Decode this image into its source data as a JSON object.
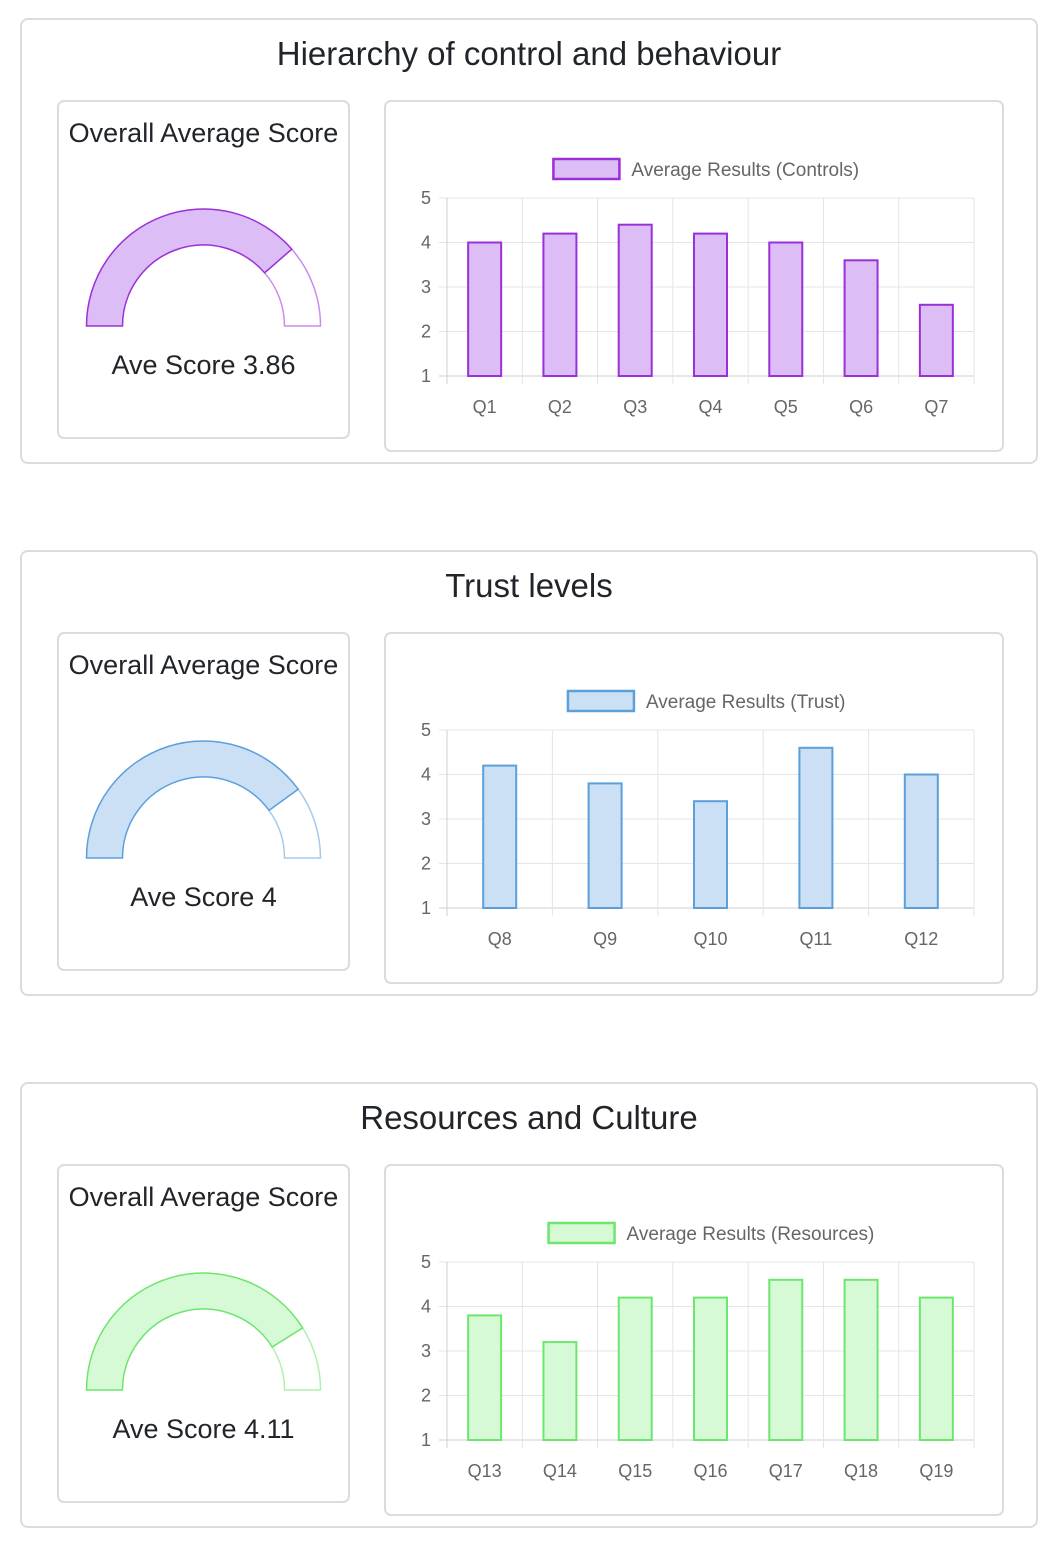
{
  "sections": [
    {
      "title": "Hierarchy of control and behaviour",
      "gauge_label": "Overall Average Score",
      "score_text": "Ave Score 3.86",
      "score_value": 3.86,
      "score_max": 5,
      "colors": {
        "fill": "#dcbdf5",
        "stroke": "#9b30d9"
      },
      "chart_data": {
        "type": "bar",
        "legend": "Average Results (Controls)",
        "legend_position": "top",
        "categories": [
          "Q1",
          "Q2",
          "Q3",
          "Q4",
          "Q5",
          "Q6",
          "Q7"
        ],
        "values": [
          4.0,
          4.2,
          4.4,
          4.2,
          4.0,
          3.6,
          2.6
        ],
        "ylim": [
          1,
          5
        ],
        "yticks": [
          "1",
          "2",
          "3",
          "4",
          "5"
        ],
        "grid": true
      }
    },
    {
      "title": "Trust levels",
      "gauge_label": "Overall Average Score",
      "score_text": "Ave Score 4",
      "score_value": 4,
      "score_max": 5,
      "colors": {
        "fill": "#cce0f5",
        "stroke": "#5b9fdc"
      },
      "chart_data": {
        "type": "bar",
        "legend": "Average Results (Trust)",
        "legend_position": "top",
        "categories": [
          "Q8",
          "Q9",
          "Q10",
          "Q11",
          "Q12"
        ],
        "values": [
          4.2,
          3.8,
          3.4,
          4.6,
          4.0
        ],
        "ylim": [
          1,
          5
        ],
        "yticks": [
          "1",
          "2",
          "3",
          "4",
          "5"
        ],
        "grid": true
      }
    },
    {
      "title": "Resources and Culture",
      "gauge_label": "Overall Average Score",
      "score_text": "Ave Score 4.11",
      "score_value": 4.11,
      "score_max": 5,
      "colors": {
        "fill": "#d6fad6",
        "stroke": "#6ee56e"
      },
      "chart_data": {
        "type": "bar",
        "legend": "Average Results (Resources)",
        "legend_position": "top",
        "categories": [
          "Q13",
          "Q14",
          "Q15",
          "Q16",
          "Q17",
          "Q18",
          "Q19"
        ],
        "values": [
          3.8,
          3.2,
          4.2,
          4.2,
          4.6,
          4.6,
          4.2
        ],
        "ylim": [
          1,
          5
        ],
        "yticks": [
          "1",
          "2",
          "3",
          "4",
          "5"
        ],
        "grid": true
      }
    }
  ]
}
